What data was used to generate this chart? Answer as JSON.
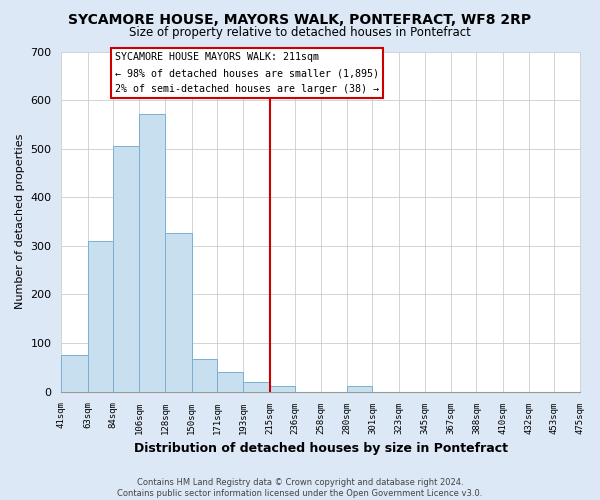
{
  "title": "SYCAMORE HOUSE, MAYORS WALK, PONTEFRACT, WF8 2RP",
  "subtitle": "Size of property relative to detached houses in Pontefract",
  "xlabel": "Distribution of detached houses by size in Pontefract",
  "ylabel": "Number of detached properties",
  "bar_color": "#c8dff0",
  "bar_edgecolor": "#7ab0d4",
  "bin_edges": [
    41,
    63,
    84,
    106,
    128,
    150,
    171,
    193,
    215,
    236,
    258,
    280,
    301,
    323,
    345,
    367,
    388,
    410,
    432,
    453,
    475
  ],
  "bar_heights": [
    75,
    311,
    506,
    572,
    327,
    68,
    40,
    20,
    12,
    0,
    0,
    12,
    0,
    0,
    0,
    0,
    0,
    0,
    0,
    0
  ],
  "tick_labels": [
    "41sqm",
    "63sqm",
    "84sqm",
    "106sqm",
    "128sqm",
    "150sqm",
    "171sqm",
    "193sqm",
    "215sqm",
    "236sqm",
    "258sqm",
    "280sqm",
    "301sqm",
    "323sqm",
    "345sqm",
    "367sqm",
    "388sqm",
    "410sqm",
    "432sqm",
    "453sqm",
    "475sqm"
  ],
  "vline_x": 215,
  "vline_color": "#cc0000",
  "ylim": [
    0,
    700
  ],
  "yticks": [
    0,
    100,
    200,
    300,
    400,
    500,
    600,
    700
  ],
  "annotation_title": "SYCAMORE HOUSE MAYORS WALK: 211sqm",
  "annotation_line1": "← 98% of detached houses are smaller (1,895)",
  "annotation_line2": "2% of semi-detached houses are larger (38) →",
  "footer_line1": "Contains HM Land Registry data © Crown copyright and database right 2024.",
  "footer_line2": "Contains public sector information licensed under the Open Government Licence v3.0.",
  "figure_facecolor": "#dce8f5",
  "axes_facecolor": "#ffffff",
  "grid_color": "#cccccc"
}
